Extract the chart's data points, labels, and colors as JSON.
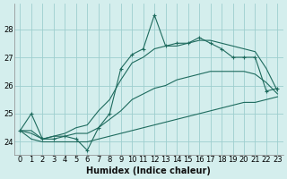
{
  "xlabel": "Humidex (Indice chaleur)",
  "background_color": "#d4eeed",
  "grid_color": "#9ecece",
  "line_color": "#1e6b5e",
  "x_values": [
    0,
    1,
    2,
    3,
    4,
    5,
    6,
    7,
    8,
    9,
    10,
    11,
    12,
    13,
    14,
    15,
    16,
    17,
    18,
    19,
    20,
    21,
    22,
    23
  ],
  "y_main": [
    24.4,
    25.0,
    24.1,
    24.1,
    24.2,
    24.1,
    23.7,
    24.5,
    25.0,
    26.6,
    27.1,
    27.3,
    28.5,
    27.4,
    27.5,
    27.5,
    27.7,
    27.5,
    27.3,
    27.0,
    27.0,
    27.0,
    25.8,
    25.9
  ],
  "y_upper_env": [
    24.4,
    24.4,
    24.1,
    24.2,
    24.3,
    24.5,
    24.6,
    25.1,
    25.5,
    26.2,
    26.8,
    27.0,
    27.3,
    27.4,
    27.4,
    27.5,
    27.6,
    27.6,
    27.5,
    27.4,
    27.3,
    27.2,
    26.6,
    25.8
  ],
  "y_mid_env": [
    24.4,
    24.3,
    24.1,
    24.2,
    24.2,
    24.3,
    24.3,
    24.5,
    24.8,
    25.1,
    25.5,
    25.7,
    25.9,
    26.0,
    26.2,
    26.3,
    26.4,
    26.5,
    26.5,
    26.5,
    26.5,
    26.4,
    26.1,
    25.7
  ],
  "y_lower_env": [
    24.4,
    24.1,
    24.0,
    24.0,
    24.0,
    24.0,
    24.0,
    24.1,
    24.2,
    24.3,
    24.4,
    24.5,
    24.6,
    24.7,
    24.8,
    24.9,
    25.0,
    25.1,
    25.2,
    25.3,
    25.4,
    25.4,
    25.5,
    25.6
  ],
  "ylim": [
    23.55,
    28.9
  ],
  "xlim": [
    -0.5,
    23.5
  ],
  "yticks": [
    24,
    25,
    26,
    27,
    28
  ],
  "xticks": [
    0,
    1,
    2,
    3,
    4,
    5,
    6,
    7,
    8,
    9,
    10,
    11,
    12,
    13,
    14,
    15,
    16,
    17,
    18,
    19,
    20,
    21,
    22,
    23
  ],
  "tick_fontsize": 6,
  "xlabel_fontsize": 7
}
